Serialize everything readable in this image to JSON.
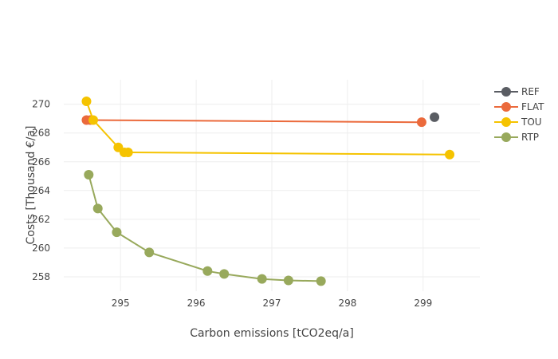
{
  "chart_data": {
    "type": "scatter",
    "xlabel": "Carbon emissions [tCO2eq/a]",
    "ylabel": "Costs [Thousand €/a]",
    "xlim": [
      294.25,
      299.75
    ],
    "ylim": [
      257.0,
      271.7
    ],
    "xticks": [
      295,
      296,
      297,
      298,
      299
    ],
    "yticks": [
      258,
      260,
      262,
      264,
      266,
      268,
      270
    ],
    "grid": true,
    "legend_position": "top-right",
    "series": [
      {
        "name": "REF",
        "color": "#5a5d63",
        "mode": "markers",
        "points": [
          [
            299.15,
            269.1
          ]
        ]
      },
      {
        "name": "FLAT",
        "color": "#eb6a3c",
        "mode": "lines+markers",
        "points": [
          [
            294.55,
            268.9
          ],
          [
            294.6,
            268.9
          ],
          [
            298.98,
            268.75
          ]
        ]
      },
      {
        "name": "TOU",
        "color": "#f5c300",
        "mode": "lines+markers",
        "points": [
          [
            294.55,
            270.2
          ],
          [
            294.64,
            268.9
          ],
          [
            294.97,
            267.0
          ],
          [
            295.05,
            266.65
          ],
          [
            295.1,
            266.65
          ],
          [
            299.35,
            266.5
          ]
        ]
      },
      {
        "name": "RTP",
        "color": "#98a95c",
        "mode": "lines+markers",
        "points": [
          [
            294.58,
            265.1
          ],
          [
            294.7,
            262.75
          ],
          [
            294.95,
            261.1
          ],
          [
            295.38,
            259.7
          ],
          [
            296.15,
            258.4
          ],
          [
            296.37,
            258.2
          ],
          [
            296.87,
            257.85
          ],
          [
            297.22,
            257.75
          ],
          [
            297.65,
            257.7
          ]
        ]
      }
    ]
  }
}
